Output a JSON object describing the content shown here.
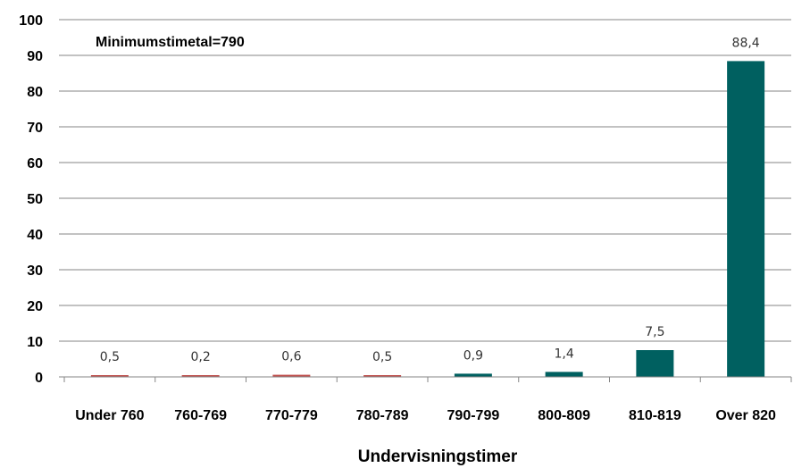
{
  "chart_data": {
    "type": "bar",
    "categories": [
      "Under 760",
      "760-769",
      "770-779",
      "780-789",
      "790-799",
      "800-809",
      "810-819",
      "Over 820"
    ],
    "values": [
      0.5,
      0.2,
      0.6,
      0.5,
      0.9,
      1.4,
      7.5,
      88.4
    ],
    "value_labels": [
      "0,5",
      "0,2",
      "0,6",
      "0,5",
      "0,9",
      "1,4",
      "7,5",
      "88,4"
    ],
    "bar_colors": [
      "#c0504d",
      "#c0504d",
      "#c0504d",
      "#c0504d",
      "#006060",
      "#006060",
      "#006060",
      "#006060"
    ],
    "annotation": "Minimumstimetal=790",
    "xlabel": "Undervisningstimer",
    "ylabel": "",
    "ylim": [
      0,
      100
    ],
    "yticks": [
      0,
      10,
      20,
      30,
      40,
      50,
      60,
      70,
      80,
      90,
      100
    ],
    "grid": true,
    "gridline_color": "#868686"
  }
}
